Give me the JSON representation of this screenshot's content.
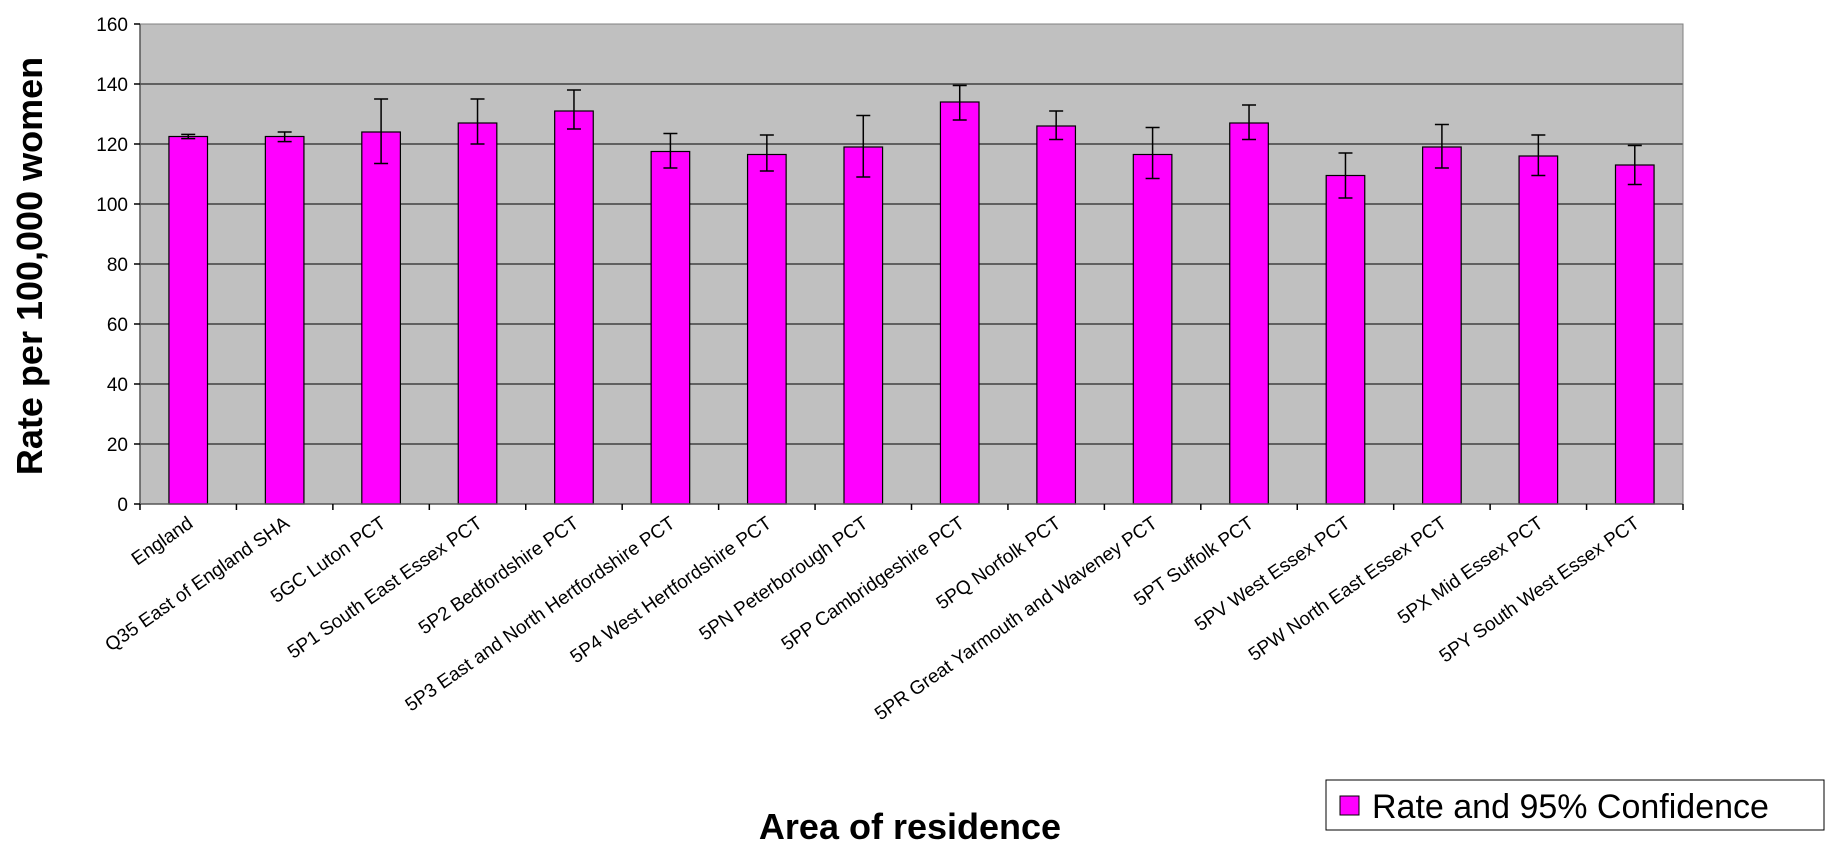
{
  "chart_data": {
    "type": "bar",
    "title": "",
    "xlabel": "Area of residence",
    "ylabel": "Rate per 100,000 women",
    "ylim": [
      0,
      160
    ],
    "yticks": [
      0,
      20,
      40,
      60,
      80,
      100,
      120,
      140,
      160
    ],
    "grid": true,
    "legend_position": "bottom-right",
    "colors": {
      "bar": "#ff00ff",
      "plot_bg": "#c0c0c0",
      "grid": "#000000",
      "bar_stroke": "#000000"
    },
    "categories": [
      "England",
      "Q35 East of England SHA",
      "5GC Luton PCT",
      "5P1 South East Essex PCT",
      "5P2 Bedfordshire PCT",
      "5P3 East and North Hertfordshire PCT",
      "5P4 West Hertfordshire PCT",
      "5PN Peterborough PCT",
      "5PP Cambridgeshire PCT",
      "5PQ Norfolk PCT",
      "5PR Great Yarmouth and Waveney PCT",
      "5PT Suffolk PCT",
      "5PV West Essex PCT",
      "5PW North East Essex PCT",
      "5PX Mid Essex PCT",
      "5PY South West Essex PCT"
    ],
    "series": [
      {
        "name": "Rate and 95% Confidence",
        "values": [
          122.5,
          122.5,
          124,
          127,
          131,
          117.5,
          116.5,
          119,
          134,
          126,
          116.5,
          127,
          109.5,
          119,
          116,
          113
        ],
        "ci_lower": [
          121.8,
          120.8,
          113.5,
          120,
          125,
          112,
          111,
          109,
          128,
          121.5,
          108.5,
          121.5,
          102,
          112,
          109.5,
          106.5
        ],
        "ci_upper": [
          123.2,
          124,
          135,
          135,
          138,
          123.5,
          123,
          129.5,
          139.5,
          131,
          125.5,
          133,
          117,
          126.5,
          123,
          119.5
        ]
      }
    ]
  }
}
